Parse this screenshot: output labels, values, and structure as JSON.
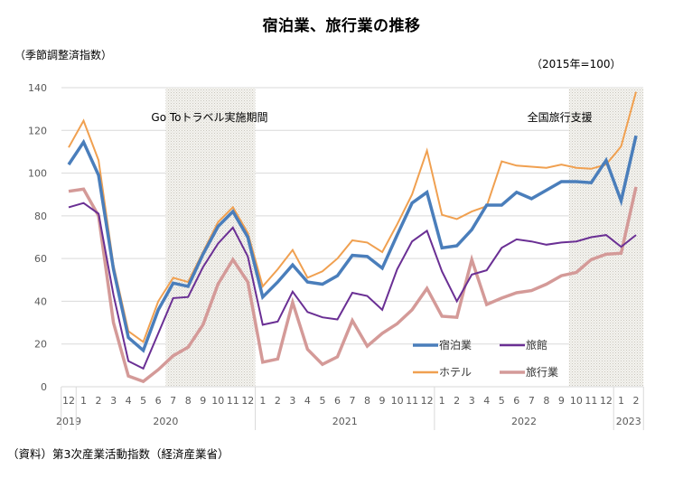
{
  "chart_data": {
    "type": "line",
    "title": "宿泊業、旅行業の推移",
    "ylabel": "（季節調整済指数）",
    "unit_note": "（2015年=100）",
    "source": "（資料）第3次産業活動指数（経済産業省）",
    "ylim": [
      0,
      140
    ],
    "yticks": [
      0,
      20,
      40,
      60,
      80,
      100,
      120,
      140
    ],
    "grid": true,
    "legend_position": "bottom-right",
    "x_month_labels": [
      "12",
      "1",
      "2",
      "3",
      "4",
      "5",
      "6",
      "7",
      "8",
      "9",
      "10",
      "11",
      "12",
      "1",
      "2",
      "3",
      "4",
      "5",
      "6",
      "7",
      "8",
      "9",
      "10",
      "11",
      "12",
      "1",
      "2",
      "3",
      "4",
      "5",
      "6",
      "7",
      "8",
      "9",
      "10",
      "11",
      "12",
      "1",
      "2"
    ],
    "x_year_groups": [
      {
        "label": "2019",
        "start": 0,
        "end": 0
      },
      {
        "label": "2020",
        "start": 1,
        "end": 12
      },
      {
        "label": "2021",
        "start": 13,
        "end": 24
      },
      {
        "label": "2022",
        "start": 25,
        "end": 36
      },
      {
        "label": "2023",
        "start": 37,
        "end": 38
      }
    ],
    "shaded_periods": [
      {
        "label": "Go Toトラベル実施期間",
        "start_index": 6.5,
        "end_index": 12.5
      },
      {
        "label": "全国旅行支援",
        "start_index": 33.5,
        "end_index": 38.5
      }
    ],
    "series": [
      {
        "name": "宿泊業",
        "color": "#4a7ebb",
        "width": 3.5,
        "values": [
          104,
          114.5,
          99,
          55,
          23,
          17,
          36,
          48.5,
          47,
          62,
          75,
          82,
          70,
          42,
          49,
          57,
          49,
          48,
          52,
          61.5,
          61,
          55.5,
          71,
          86,
          91,
          65,
          66,
          73.5,
          85,
          85,
          91,
          88,
          92,
          96,
          96,
          95.5,
          106,
          87,
          117.5
        ]
      },
      {
        "name": "旅館",
        "color": "#6a2f94",
        "width": 2,
        "values": [
          84,
          86,
          81,
          43,
          12,
          8.5,
          25,
          41.5,
          42,
          56,
          67,
          74.5,
          61,
          29,
          30.5,
          44.5,
          35,
          32.5,
          31.5,
          44,
          42.5,
          36,
          55,
          68,
          73,
          54,
          40,
          52.5,
          54.5,
          65,
          69,
          68,
          66.5,
          67.5,
          68,
          70,
          71,
          65.5,
          71
        ]
      },
      {
        "name": "ホテル",
        "color": "#f0a050",
        "width": 2,
        "values": [
          112,
          124.5,
          106,
          57,
          26,
          21,
          40,
          51,
          49,
          63,
          77,
          84,
          72,
          47,
          55,
          64,
          51,
          54,
          60,
          68.5,
          67.5,
          63,
          76,
          90,
          110.5,
          80.5,
          78.5,
          82,
          84.5,
          105.5,
          103.5,
          103,
          102.5,
          104,
          102.5,
          102,
          104,
          112.5,
          138
        ]
      },
      {
        "name": "旅行業",
        "color": "#d49a98",
        "width": 3.5,
        "values": [
          91.5,
          92.5,
          80,
          30,
          5,
          2.5,
          8,
          14.5,
          18.5,
          29,
          48,
          59.5,
          49,
          11.5,
          13,
          39.5,
          17.5,
          10.5,
          14,
          31,
          19,
          25,
          29.5,
          36,
          46,
          33,
          32.5,
          59.5,
          38.5,
          41.5,
          44,
          45,
          48,
          52,
          53.5,
          59.5,
          62,
          62.5,
          93.5
        ]
      }
    ]
  }
}
